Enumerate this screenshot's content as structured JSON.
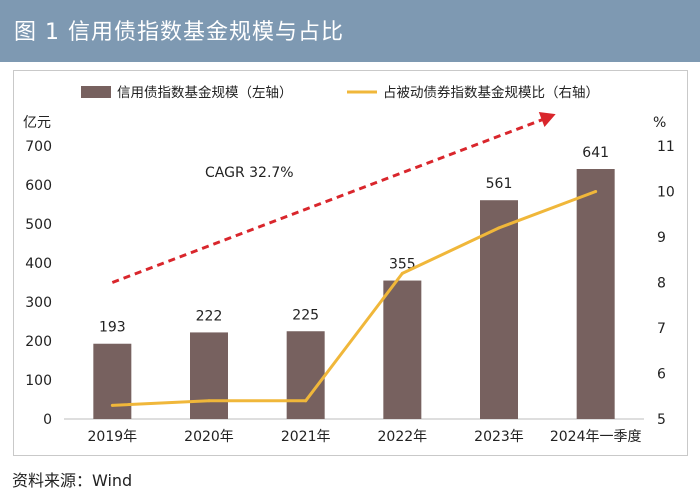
{
  "header": {
    "title": "图 1    信用债指数基金规模与占比"
  },
  "source": "资料来源：Wind",
  "chart_data": {
    "type": "bar+line",
    "categories": [
      "2019年",
      "2020年",
      "2021年",
      "2022年",
      "2023年",
      "2024年一季度"
    ],
    "series": [
      {
        "name": "信用债指数基金规模（左轴）",
        "type": "bar",
        "axis": "left",
        "values": [
          193,
          222,
          225,
          355,
          561,
          641
        ],
        "color": "#77615f"
      },
      {
        "name": "占被动债券指数基金规模比（右轴）",
        "type": "line",
        "axis": "right",
        "values": [
          5.3,
          5.4,
          5.4,
          8.2,
          9.2,
          10.0
        ],
        "color": "#f0b73a"
      }
    ],
    "trend": {
      "label": "CAGR 32.7%",
      "color": "#d9262c",
      "style": "dashed-arrow",
      "start": {
        "category": "2019年",
        "right_value": 8.0
      },
      "end": {
        "category": "2024年一季度",
        "right_value": 11.7
      }
    },
    "left_axis": {
      "label": "亿元",
      "ylim": [
        0,
        700
      ],
      "ticks": [
        0,
        100,
        200,
        300,
        400,
        500,
        600,
        700
      ]
    },
    "right_axis": {
      "label": "%",
      "ylim": [
        5,
        11
      ],
      "ticks": [
        5,
        6,
        7,
        8,
        9,
        10,
        11
      ]
    },
    "legend": {
      "placement": "top"
    }
  }
}
